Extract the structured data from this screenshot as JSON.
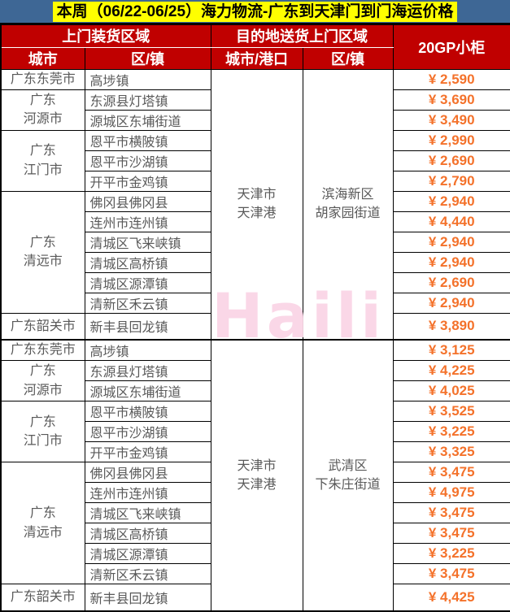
{
  "title": "本周（06/22-06/25）海力物流-广东到天津门到门海运价格",
  "header": {
    "pickup_area": "上门装货区域",
    "delivery_area": "目的地送货上门区域",
    "container": "20GP小柜",
    "col_city": "城市",
    "col_district": "区/镇",
    "col_dest_city": "城市/港口",
    "col_dest_district": "区/镇"
  },
  "watermark": "Haili",
  "colors": {
    "title_bar_blue": "#3E6795",
    "title_highlight_yellow": "#FFFF00",
    "header_red": "#C00000",
    "header_text_white": "#FFFFFF",
    "body_text_gray": "#595959",
    "price_orange": "#F4722B",
    "watermark_pink": "#FAD7E7",
    "grid_black": "#000000"
  },
  "sections": [
    {
      "destination": {
        "city": "天津市\n天津港",
        "district": "滨海新区\n胡家园街道"
      },
      "groups": [
        {
          "city": "广东东莞市",
          "rows": [
            {
              "district": "高埗镇",
              "price": "¥ 2,590"
            }
          ]
        },
        {
          "city": "广东\n河源市",
          "rows": [
            {
              "district": "东源县灯塔镇",
              "price": "¥ 3,690"
            },
            {
              "district": "源城区东埔街道",
              "price": "¥ 3,490"
            }
          ]
        },
        {
          "city": "广东\n江门市",
          "rows": [
            {
              "district": "恩平市横陂镇",
              "price": "¥ 2,990"
            },
            {
              "district": "恩平市沙湖镇",
              "price": "¥ 2,690"
            },
            {
              "district": "开平市金鸡镇",
              "price": "¥ 2,790"
            }
          ]
        },
        {
          "city": "广东\n清远市",
          "rows": [
            {
              "district": "佛冈县佛冈县",
              "price": "¥ 2,940"
            },
            {
              "district": "连州市连州镇",
              "price": "¥ 4,440"
            },
            {
              "district": "清城区飞来峡镇",
              "price": "¥ 2,940"
            },
            {
              "district": "清城区高桥镇",
              "price": "¥ 2,940"
            },
            {
              "district": "清城区源潭镇",
              "price": "¥ 2,690"
            },
            {
              "district": "清新区禾云镇",
              "price": "¥ 2,940"
            }
          ]
        },
        {
          "city": "广东韶关市",
          "rows": [
            {
              "district": "新丰县回龙镇",
              "price": "¥ 3,890",
              "tall": true
            }
          ]
        }
      ]
    },
    {
      "destination": {
        "city": "天津市\n天津港",
        "district": "武清区\n下朱庄街道"
      },
      "groups": [
        {
          "city": "广东东莞市",
          "rows": [
            {
              "district": "高埗镇",
              "price": "¥ 3,125"
            }
          ]
        },
        {
          "city": "广东\n河源市",
          "rows": [
            {
              "district": "东源县灯塔镇",
              "price": "¥ 4,225"
            },
            {
              "district": "源城区东埔街道",
              "price": "¥ 4,025"
            }
          ]
        },
        {
          "city": "广东\n江门市",
          "rows": [
            {
              "district": "恩平市横陂镇",
              "price": "¥ 3,525"
            },
            {
              "district": "恩平市沙湖镇",
              "price": "¥ 3,225"
            },
            {
              "district": "开平市金鸡镇",
              "price": "¥ 3,325"
            }
          ]
        },
        {
          "city": "广东\n清远市",
          "rows": [
            {
              "district": "佛冈县佛冈县",
              "price": "¥ 3,475"
            },
            {
              "district": "连州市连州镇",
              "price": "¥ 4,975"
            },
            {
              "district": "清城区飞来峡镇",
              "price": "¥ 3,475"
            },
            {
              "district": "清城区高桥镇",
              "price": "¥ 3,475"
            },
            {
              "district": "清城区源潭镇",
              "price": "¥ 3,225"
            },
            {
              "district": "清新区禾云镇",
              "price": "¥ 3,475"
            }
          ]
        },
        {
          "city": "广东韶关市",
          "rows": [
            {
              "district": "新丰县回龙镇",
              "price": "¥ 4,425",
              "tall": true
            }
          ]
        }
      ]
    }
  ]
}
